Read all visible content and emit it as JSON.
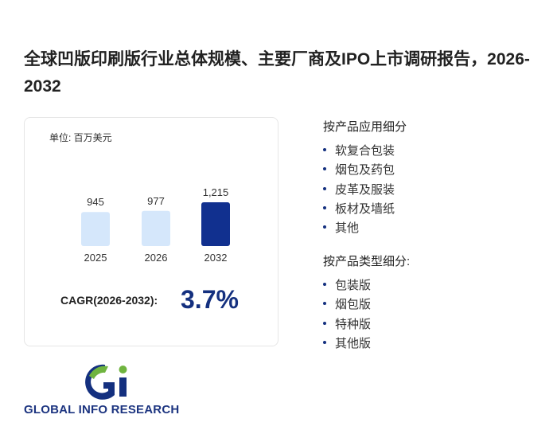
{
  "title": "全球凹版印刷版行业总体规模、主要厂商及IPO上市调研报告，2026-2032",
  "chart_data": {
    "type": "bar",
    "unit": "单位: 百万美元",
    "categories": [
      "2025",
      "2026",
      "2032"
    ],
    "values": [
      945,
      977,
      1215
    ],
    "value_labels": [
      "945",
      "977",
      "1,215"
    ],
    "colors": [
      "#d5e7fb",
      "#d5e7fb",
      "#11308f"
    ]
  },
  "cagr": {
    "label": "CAGR(2026-2032):",
    "value": "3.7%"
  },
  "sections": [
    {
      "heading": "按产品应用细分",
      "items": [
        "软复合包装",
        "烟包及药包",
        "皮革及服装",
        "板材及墙纸",
        "其他"
      ]
    },
    {
      "heading": "按产品类型细分:",
      "items": [
        "包装版",
        "烟包版",
        "特种版",
        "其他版"
      ]
    }
  ],
  "logo": {
    "text": "GLOBAL INFO RESEARCH"
  }
}
